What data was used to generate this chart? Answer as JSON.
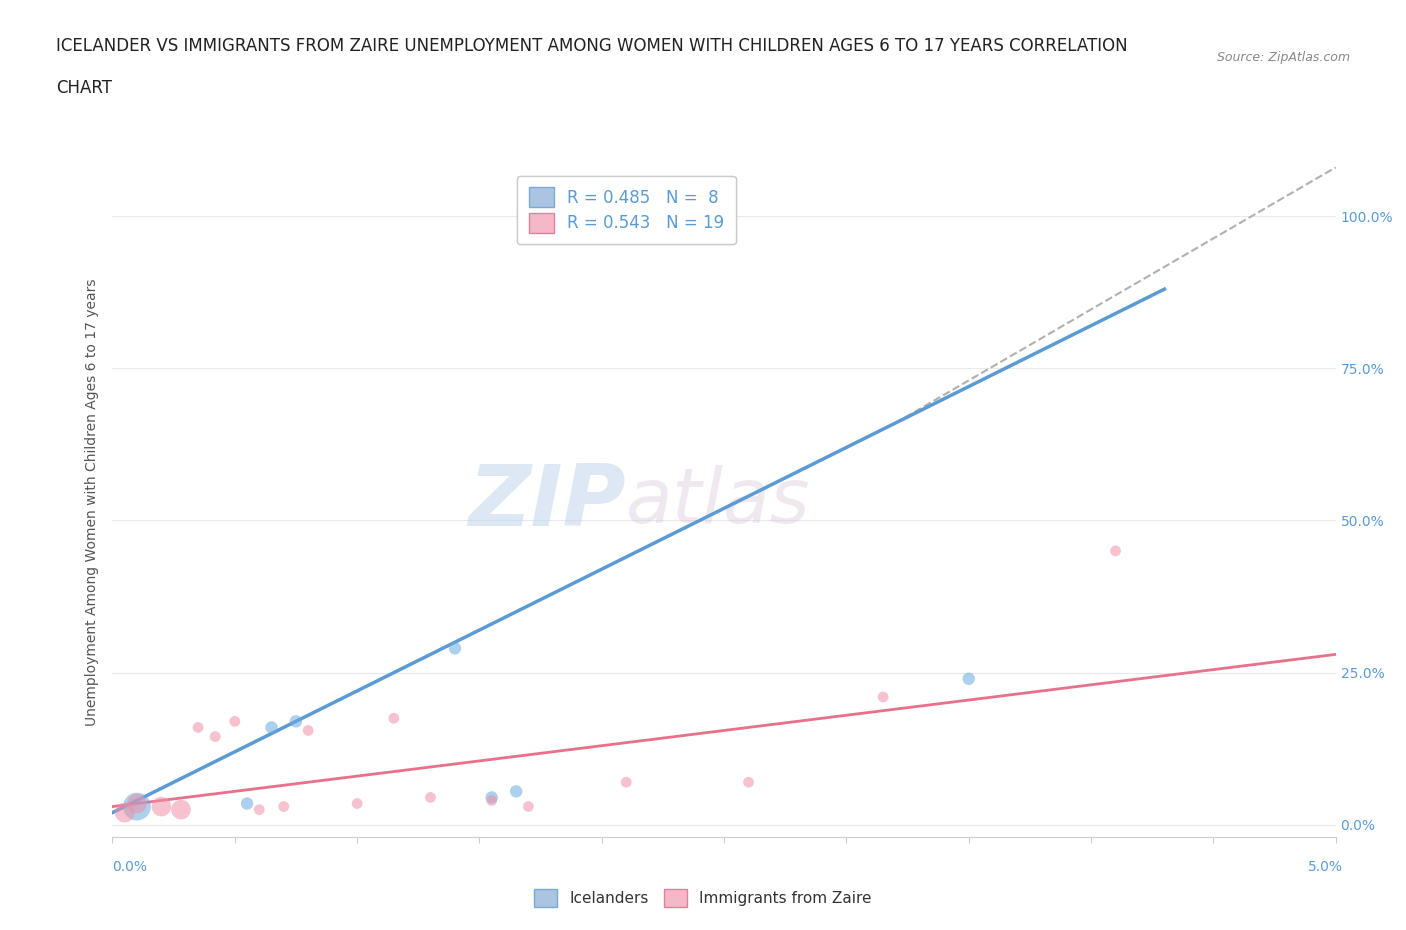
{
  "title_line1": "ICELANDER VS IMMIGRANTS FROM ZAIRE UNEMPLOYMENT AMONG WOMEN WITH CHILDREN AGES 6 TO 17 YEARS CORRELATION",
  "title_line2": "CHART",
  "source_text": "Source: ZipAtlas.com",
  "ylabel_label": "Unemployment Among Women with Children Ages 6 to 17 years",
  "ytick_labels": [
    "0.0%",
    "25.0%",
    "50.0%",
    "75.0%",
    "100.0%"
  ],
  "ytick_values": [
    0,
    25,
    50,
    75,
    100
  ],
  "xlim": [
    0.0,
    5.0
  ],
  "ylim": [
    -2.0,
    108.0
  ],
  "watermark_zip": "ZIP",
  "watermark_atlas": "atlas",
  "legend_entries": [
    {
      "label": "R = 0.485   N =  8",
      "color": "#aac4e2"
    },
    {
      "label": "R = 0.543   N = 19",
      "color": "#f5b8c8"
    }
  ],
  "legend_bottom": [
    {
      "label": "Icelanders",
      "color": "#aac4e2"
    },
    {
      "label": "Immigrants from Zaire",
      "color": "#f5b8c8"
    }
  ],
  "blue_line": {
    "x": [
      0.0,
      4.3
    ],
    "y": [
      2.0,
      88.0
    ],
    "color": "#5b9bd5",
    "linewidth": 2.5
  },
  "pink_line": {
    "x": [
      0.0,
      5.0
    ],
    "y": [
      3.0,
      28.0
    ],
    "color": "#e8708a",
    "linewidth": 2.0
  },
  "gray_dashed_line": {
    "x": [
      3.2,
      5.0
    ],
    "y": [
      66.0,
      108.0
    ],
    "color": "#b0b0b0",
    "linewidth": 1.5,
    "linestyle": "--"
  },
  "blue_points": [
    [
      0.1,
      3.0
    ],
    [
      0.55,
      3.5
    ],
    [
      0.65,
      16.0
    ],
    [
      0.75,
      17.0
    ],
    [
      1.4,
      29.0
    ],
    [
      1.55,
      4.5
    ],
    [
      1.65,
      5.5
    ],
    [
      3.5,
      24.0
    ]
  ],
  "pink_points": [
    [
      0.05,
      2.0
    ],
    [
      0.1,
      3.5
    ],
    [
      0.2,
      3.0
    ],
    [
      0.28,
      2.5
    ],
    [
      0.35,
      16.0
    ],
    [
      0.42,
      14.5
    ],
    [
      0.5,
      17.0
    ],
    [
      0.6,
      2.5
    ],
    [
      0.7,
      3.0
    ],
    [
      0.8,
      15.5
    ],
    [
      1.0,
      3.5
    ],
    [
      1.15,
      17.5
    ],
    [
      1.3,
      4.5
    ],
    [
      1.55,
      4.0
    ],
    [
      1.7,
      3.0
    ],
    [
      2.1,
      7.0
    ],
    [
      2.6,
      7.0
    ],
    [
      3.15,
      21.0
    ],
    [
      4.1,
      45.0
    ]
  ],
  "blue_point_size_large": 400,
  "blue_point_size_small": 80,
  "pink_point_size_large": 200,
  "pink_point_size_small": 60,
  "blue_point_color": "#6aaae0",
  "pink_point_color": "#f090a8",
  "blue_point_alpha": 0.55,
  "pink_point_alpha": 0.55,
  "bg_color": "#ffffff",
  "grid_color": "#e8e8e8",
  "title_fontsize": 12,
  "axis_label_fontsize": 10,
  "tick_fontsize": 10,
  "legend_fontsize": 12
}
